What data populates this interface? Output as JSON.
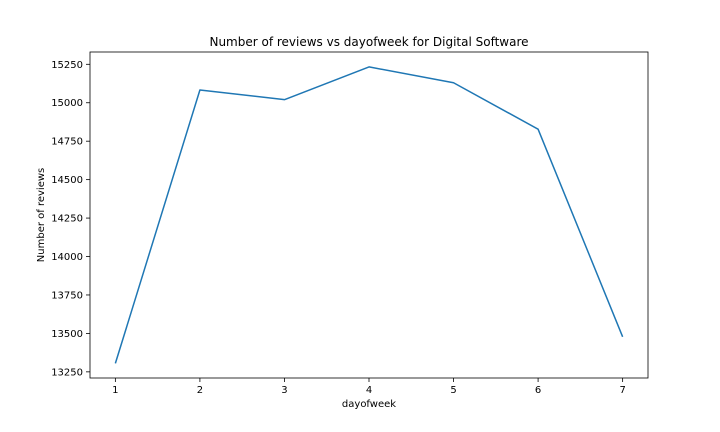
{
  "chart_data": {
    "type": "line",
    "title": "Number of reviews vs dayofweek for Digital Software",
    "xlabel": "dayofweek",
    "ylabel": "Number of reviews",
    "x": [
      1,
      2,
      3,
      4,
      5,
      6,
      7
    ],
    "series": [
      {
        "values": [
          13305,
          15083,
          15020,
          15233,
          15130,
          14828,
          13478
        ]
      }
    ],
    "xticks": [
      "1",
      "2",
      "3",
      "4",
      "5",
      "6",
      "7"
    ],
    "yticks": [
      "13250",
      "13500",
      "13750",
      "14000",
      "14250",
      "14500",
      "14750",
      "15000",
      "15250"
    ],
    "xlim": [
      0.7,
      7.3
    ],
    "ylim": [
      13210,
      15330
    ],
    "grid": false,
    "color": "#1f77b4"
  }
}
